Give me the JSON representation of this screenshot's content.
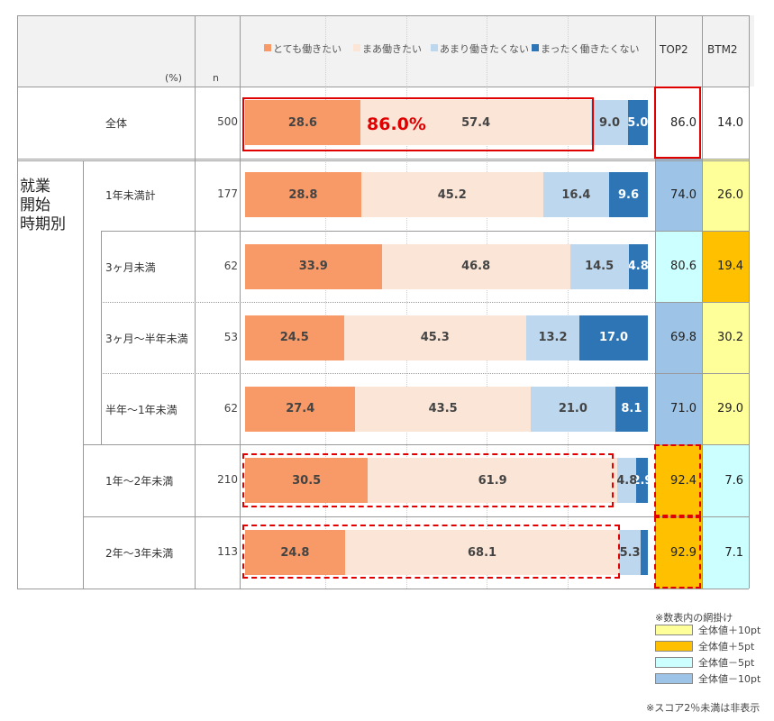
{
  "header": {
    "unit": "(%)",
    "n": "n",
    "top2": "TOP2",
    "btm2": "BTM2"
  },
  "group_label": [
    "就業",
    "開始",
    "時期別"
  ],
  "callout": "86.0%",
  "colors": {
    "c1": "#f79a67",
    "c2": "#fbe5d6",
    "c3": "#bdd7ee",
    "c4": "#2e75b6",
    "plus10": "#ffff99",
    "plus5": "#ffc000",
    "minus5": "#ccffff",
    "minus10": "#9dc3e6",
    "highlight": "#e00000"
  },
  "chart_data": {
    "type": "bar",
    "orientation": "horizontal",
    "stacked": true,
    "series": [
      {
        "name": "とても働きたい",
        "color": "#f79a67"
      },
      {
        "name": "まあ働きたい",
        "color": "#fbe5d6"
      },
      {
        "name": "あまり働きたくない",
        "color": "#bdd7ee"
      },
      {
        "name": "まったく働きたくない",
        "color": "#2e75b6"
      }
    ],
    "rows": [
      {
        "label": "全体",
        "n": "500",
        "values": [
          28.6,
          57.4,
          9.0,
          5.0
        ],
        "labels": [
          "28.6",
          "57.4",
          "9.0",
          "5.0"
        ],
        "top2": "86.0",
        "btm2": "14.0",
        "top2_shade": "none",
        "btm2_shade": "none"
      },
      {
        "label": "1年未満計",
        "n": "177",
        "values": [
          28.8,
          45.2,
          16.4,
          9.6
        ],
        "labels": [
          "28.8",
          "45.2",
          "16.4",
          "9.6"
        ],
        "top2": "74.0",
        "btm2": "26.0",
        "top2_shade": "minus10",
        "btm2_shade": "plus10"
      },
      {
        "label": "3ヶ月未満",
        "n": "62",
        "values": [
          33.9,
          46.8,
          14.5,
          4.8
        ],
        "labels": [
          "33.9",
          "46.8",
          "14.5",
          "4.8"
        ],
        "top2": "80.6",
        "btm2": "19.4",
        "top2_shade": "minus5",
        "btm2_shade": "plus5"
      },
      {
        "label": "3ヶ月～半年未満",
        "n": "53",
        "values": [
          24.5,
          45.3,
          13.2,
          17.0
        ],
        "labels": [
          "24.5",
          "45.3",
          "13.2",
          "17.0"
        ],
        "top2": "69.8",
        "btm2": "30.2",
        "top2_shade": "minus10",
        "btm2_shade": "plus10"
      },
      {
        "label": "半年～1年未満",
        "n": "62",
        "values": [
          27.4,
          43.5,
          21.0,
          8.1
        ],
        "labels": [
          "27.4",
          "43.5",
          "21.0",
          "8.1"
        ],
        "top2": "71.0",
        "btm2": "29.0",
        "top2_shade": "minus10",
        "btm2_shade": "plus10"
      },
      {
        "label": "1年～2年未満",
        "n": "210",
        "values": [
          30.5,
          61.9,
          4.8,
          2.9
        ],
        "labels": [
          "30.5",
          "61.9",
          "4.8",
          "2.9"
        ],
        "top2": "92.4",
        "btm2": "7.6",
        "top2_shade": "plus5",
        "btm2_shade": "minus5"
      },
      {
        "label": "2年～3年未満",
        "n": "113",
        "values": [
          24.8,
          68.1,
          5.3,
          1.8
        ],
        "labels": [
          "24.8",
          "68.1",
          "5.3",
          ""
        ],
        "top2": "92.9",
        "btm2": "7.1",
        "top2_shade": "plus5",
        "btm2_shade": "minus5"
      }
    ]
  },
  "shading_legend": {
    "title": "※数表内の網掛け",
    "items": [
      {
        "label": "全体値＋10pt",
        "shade": "plus10"
      },
      {
        "label": "全体値＋5pt",
        "shade": "plus5"
      },
      {
        "label": "全体値－5pt",
        "shade": "minus5"
      },
      {
        "label": "全体値－10pt",
        "shade": "minus10"
      }
    ]
  },
  "footnote": "※スコア2％未満は非表示"
}
